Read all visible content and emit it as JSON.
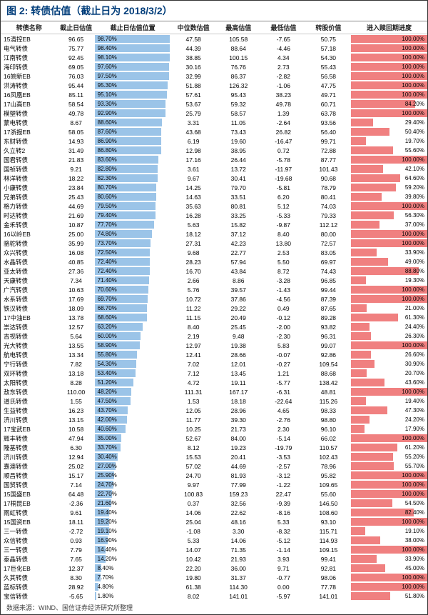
{
  "title_prefix": "图 2:",
  "title": "转债估值（截止日为 2018/3/2）",
  "source": "数据来源：WIND、国信证券经济研究所整理",
  "columns": [
    "转债名称",
    "截止日估值",
    "截止日估值位置",
    "中位数估值",
    "最高估值",
    "最低估值",
    "转股价值",
    "进入赎回期进度"
  ],
  "colors": {
    "blue": "#9bc4e8",
    "red": "#f08080",
    "header": "#003d7a"
  },
  "bar1_max": 100,
  "bar2_max": 100,
  "fontsize": {
    "title": 14,
    "header": 9,
    "cell": 8.5,
    "bar": 8
  },
  "rows": [
    [
      "15清控EB",
      "96.65",
      98.7,
      "47.58",
      "105.58",
      "-7.65",
      "50.75",
      100.0
    ],
    [
      "电气转债",
      "75.77",
      98.4,
      "44.39",
      "88.64",
      "-4.46",
      "57.18",
      100.0
    ],
    [
      "江南转债",
      "92.45",
      98.1,
      "38.85",
      "100.15",
      "4.34",
      "54.30",
      100.0
    ],
    [
      "海印转债",
      "69.05",
      97.6,
      "30.16",
      "76.76",
      "2.73",
      "55.43",
      100.0
    ],
    [
      "16皖新EB",
      "76.03",
      97.5,
      "32.99",
      "86.37",
      "-2.82",
      "56.58",
      100.0
    ],
    [
      "洪涛转债",
      "95.44",
      95.3,
      "51.88",
      "126.32",
      "-1.06",
      "47.75",
      100.0
    ],
    [
      "16凤凰EB",
      "85.11",
      95.1,
      "57.61",
      "95.43",
      "38.23",
      "49.71",
      100.0
    ],
    [
      "17山高EB",
      "58.54",
      93.3,
      "53.67",
      "59.32",
      "49.78",
      "60.71",
      84.2
    ],
    [
      "模塑转债",
      "49.78",
      92.9,
      "25.79",
      "58.57",
      "1.39",
      "63.78",
      100.0
    ],
    [
      "蒙电转债",
      "8.67",
      88.6,
      "3.31",
      "11.05",
      "-2.64",
      "93.56",
      29.4
    ],
    [
      "17浙报EB",
      "58.05",
      87.6,
      "43.68",
      "73.43",
      "26.82",
      "56.40",
      50.4
    ],
    [
      "东财转债",
      "14.93",
      86.9,
      "6.19",
      "19.60",
      "-16.47",
      "99.71",
      19.7
    ],
    [
      "久立转2",
      "31.49",
      86.8,
      "12.98",
      "38.95",
      "0.72",
      "72.88",
      55.6
    ],
    [
      "国君转债",
      "21.83",
      83.6,
      "17.16",
      "26.44",
      "-5.78",
      "87.77",
      100.0
    ],
    [
      "国祯转债",
      "9.21",
      82.8,
      "3.61",
      "13.72",
      "-11.97",
      "101.43",
      42.1
    ],
    [
      "林洋转债",
      "18.22",
      82.3,
      "9.67",
      "30.41",
      "-19.68",
      "90.68",
      64.6
    ],
    [
      "小康转债",
      "23.84",
      80.7,
      "14.25",
      "79.70",
      "-5.81",
      "78.79",
      59.2
    ],
    [
      "兄弟转债",
      "25.43",
      80.6,
      "14.63",
      "33.51",
      "6.20",
      "80.41",
      39.8
    ],
    [
      "格力转债",
      "44.69",
      79.5,
      "35.63",
      "80.81",
      "5.12",
      "74.03",
      100.0
    ],
    [
      "时达转债",
      "21.69",
      79.4,
      "16.28",
      "33.25",
      "-5.33",
      "79.33",
      56.3
    ],
    [
      "金禾转债",
      "10.87",
      77.7,
      "5.63",
      "15.82",
      "-9.87",
      "112.12",
      37.0
    ],
    [
      "16以岭EB",
      "25.00",
      74.8,
      "18.12",
      "37.12",
      "8.40",
      "80.00",
      100.0
    ],
    [
      "骆驼转债",
      "35.99",
      73.7,
      "27.31",
      "42.23",
      "13.80",
      "72.57",
      100.0
    ],
    [
      "众兴转债",
      "16.08",
      72.5,
      "9.68",
      "22.77",
      "2.53",
      "83.05",
      33.9
    ],
    [
      "水晶转债",
      "40.85",
      72.4,
      "28.23",
      "57.94",
      "5.50",
      "69.97",
      49.0
    ],
    [
      "亚太转债",
      "27.36",
      72.4,
      "16.70",
      "43.84",
      "8.72",
      "74.43",
      88.8
    ],
    [
      "天康转债",
      "7.34",
      71.4,
      "2.66",
      "8.86",
      "-3.28",
      "96.85",
      19.3
    ],
    [
      "广汽转债",
      "10.63",
      70.6,
      "5.76",
      "39.57",
      "-1.43",
      "99.44",
      100.0
    ],
    [
      "水系转债",
      "17.69",
      69.7,
      "10.72",
      "37.86",
      "-4.56",
      "87.39",
      100.0
    ],
    [
      "铁汉转债",
      "18.09",
      68.7,
      "11.22",
      "29.22",
      "0.49",
      "87.65",
      21.0
    ],
    [
      "17中油EB",
      "13.78",
      68.6,
      "11.15",
      "20.49",
      "-0.12",
      "89.28",
      61.3
    ],
    [
      "崇达转债",
      "12.57",
      63.2,
      "8.40",
      "25.45",
      "-2.00",
      "93.82",
      24.4
    ],
    [
      "吉视转债",
      "5.64",
      60.0,
      "2.19",
      "9.48",
      "-2.30",
      "96.31",
      26.3
    ],
    [
      "光大转债",
      "13.55",
      58.9,
      "12.97",
      "19.38",
      "5.83",
      "99.07",
      100.0
    ],
    [
      "航电转债",
      "13.34",
      55.8,
      "12.41",
      "28.66",
      "-0.07",
      "92.86",
      26.6
    ],
    [
      "宁行转债",
      "7.82",
      54.3,
      "7.02",
      "12.01",
      "-0.27",
      "109.54",
      30.9
    ],
    [
      "双环转债",
      "13.18",
      53.4,
      "7.12",
      "13.45",
      "1.21",
      "88.68",
      20.7
    ],
    [
      "太阳转债",
      "8.28",
      51.2,
      "4.72",
      "19.11",
      "-5.77",
      "138.42",
      43.6
    ],
    [
      "敖东转债",
      "110.00",
      48.2,
      "111.31",
      "167.17",
      "-6.31",
      "48.81",
      100.0
    ],
    [
      "道氏转债",
      "1.55",
      47.5,
      "1.53",
      "18.18",
      "-22.64",
      "115.26",
      19.4
    ],
    [
      "生益转债",
      "16.23",
      43.7,
      "12.05",
      "28.96",
      "4.65",
      "98.33",
      47.3
    ],
    [
      "济川转债",
      "13.15",
      42.0,
      "11.77",
      "39.30",
      "-2.76",
      "98.80",
      24.2
    ],
    [
      "17宝武EB",
      "10.58",
      40.6,
      "10.25",
      "21.73",
      "2.30",
      "96.10",
      17.9
    ],
    [
      "辉丰转债",
      "47.94",
      35.0,
      "52.67",
      "84.00",
      "-5.14",
      "66.02",
      100.0
    ],
    [
      "隆基转债",
      "6.30",
      33.7,
      "8.12",
      "19.23",
      "-19.79",
      "110.57",
      61.2
    ],
    [
      "济川转债",
      "12.94",
      30.4,
      "15.53",
      "20.41",
      "-3.53",
      "102.43",
      55.2
    ],
    [
      "嘉澳转债",
      "25.02",
      27.0,
      "57.02",
      "44.69",
      "-2.57",
      "78.96",
      55.7
    ],
    [
      "顺昌转债",
      "15.17",
      25.9,
      "24.70",
      "81.93",
      "-3.12",
      "95.82",
      100.0
    ],
    [
      "国贸转债",
      "7.14",
      24.7,
      "9.97",
      "77.99",
      "-1.22",
      "109.65",
      100.0
    ],
    [
      "15国盛EB",
      "64.48",
      22.7,
      "100.83",
      "159.23",
      "22.47",
      "55.60",
      100.0
    ],
    [
      "17桐昆EB",
      "-2.36",
      21.6,
      "0.37",
      "32.56",
      "-9.39",
      "146.50",
      54.5
    ],
    [
      "雨虹转债",
      "9.61",
      19.4,
      "14.06",
      "22.62",
      "-8.16",
      "108.60",
      82.4
    ],
    [
      "15国资EB",
      "18.11",
      19.2,
      "25.04",
      "48.16",
      "5.33",
      "93.10",
      100.0
    ],
    [
      "三一转债",
      "-2.72",
      19.1,
      "-1.08",
      "3.30",
      "-8.32",
      "115.71",
      19.1
    ],
    [
      "众信转债",
      "0.93",
      16.9,
      "5.33",
      "14.06",
      "-5.12",
      "114.93",
      38.0
    ],
    [
      "三一转债",
      "7.79",
      14.4,
      "14.07",
      "71.35",
      "-1.14",
      "109.15",
      100.0
    ],
    [
      "泰晶转债",
      "7.65",
      14.2,
      "10.42",
      "21.93",
      "3.93",
      "99.41",
      33.9
    ],
    [
      "17巨化EB",
      "12.37",
      8.4,
      "22.20",
      "36.00",
      "9.71",
      "92.81",
      45.0
    ],
    [
      "久其转债",
      "8.30",
      7.7,
      "19.80",
      "31.37",
      "-0.77",
      "98.06",
      100.0
    ],
    [
      "蓝标转债",
      "28.92",
      4.8,
      "61.38",
      "114.30",
      "0.00",
      "77.78",
      100.0
    ],
    [
      "宝信转债",
      "-5.65",
      1.8,
      "8.02",
      "141.01",
      "-5.97",
      "141.01",
      51.8
    ]
  ]
}
